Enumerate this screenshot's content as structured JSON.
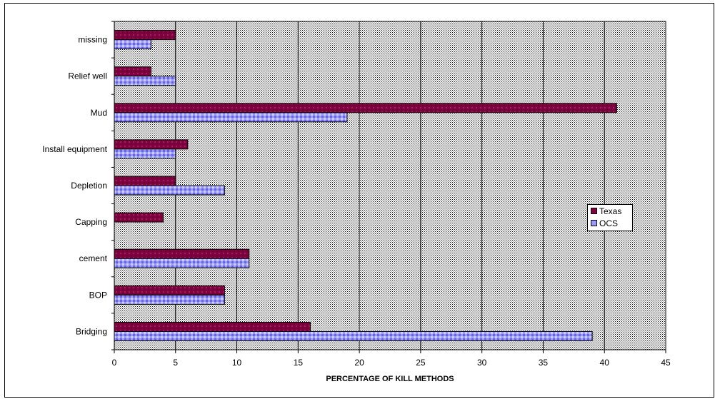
{
  "chart_data": {
    "type": "bar",
    "orientation": "horizontal",
    "categories": [
      "missing",
      "Relief well",
      "Mud",
      "Install equipment",
      "Depletion",
      "Capping",
      "cement",
      "BOP",
      "Bridging"
    ],
    "series": [
      {
        "name": "Texas",
        "values": [
          5,
          3,
          41,
          6,
          5,
          4,
          11,
          9,
          16
        ],
        "color": "#800040"
      },
      {
        "name": "OCS",
        "values": [
          3,
          5,
          19,
          5,
          9,
          null,
          11,
          9,
          39
        ],
        "color": "#9999ff"
      }
    ],
    "xlabel": "PERCENTAGE OF KILL METHODS",
    "ylabel": "",
    "xlim": [
      0,
      45
    ],
    "xticks": [
      0,
      5,
      10,
      15,
      20,
      25,
      30,
      35,
      40,
      45
    ],
    "grid": true,
    "legend_position": "right",
    "plot_background": "#c0c0c0 dotted"
  }
}
